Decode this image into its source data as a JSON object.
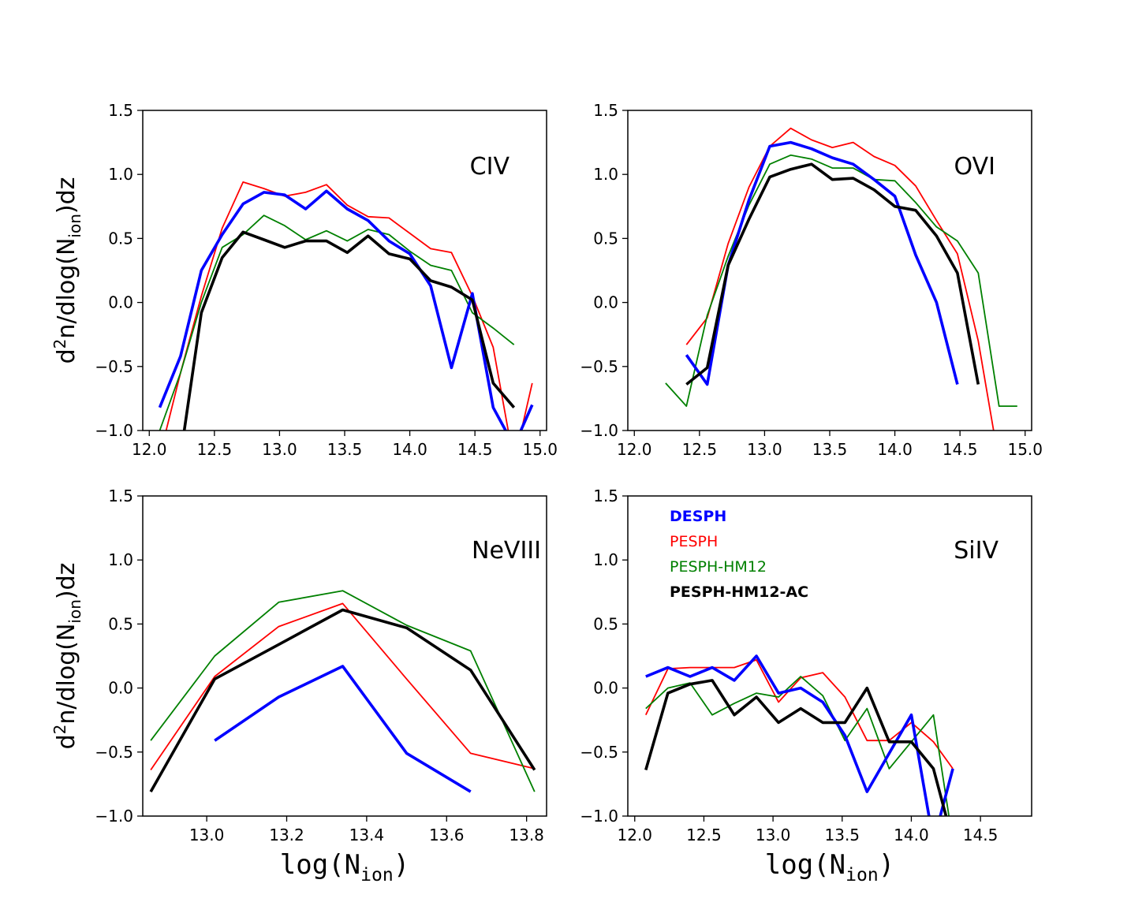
{
  "colors": {
    "DESPH": "#0000ff",
    "PESPH": "#ff0000",
    "PESPH-HM12": "#008000",
    "PESPH-HM12-AC": "#000000"
  },
  "legend": {
    "location": "upper-left of SiIV panel",
    "entries": [
      {
        "label": "DESPH",
        "series": "DESPH",
        "bold": true
      },
      {
        "label": "PESPH",
        "series": "PESPH",
        "bold": false
      },
      {
        "label": "PESPH-HM12",
        "series": "PESPH-HM12",
        "bold": false
      },
      {
        "label": "PESPH-HM12-AC",
        "series": "PESPH-HM12-AC",
        "bold": true
      }
    ]
  },
  "chart_data": [
    {
      "id": "civ",
      "type": "line",
      "title": "CIV",
      "ylabel": "d²n/dlog(N_ion)dz",
      "xlabel": "",
      "xlim": [
        11.95,
        15.05
      ],
      "ylim": [
        -1.0,
        1.5
      ],
      "xticks": [
        12.0,
        12.5,
        13.0,
        13.5,
        14.0,
        14.5,
        15.0
      ],
      "xtick_labels": [
        "12.0",
        "12.5",
        "13.0",
        "13.5",
        "14.0",
        "14.5",
        "15.0"
      ],
      "yticks": [
        -1.0,
        -0.5,
        0.0,
        0.5,
        1.0,
        1.5
      ],
      "ytick_labels": [
        "−1.0",
        "−0.5",
        "0.0",
        "0.5",
        "1.0",
        "1.5"
      ],
      "series": [
        {
          "name": "PESPH",
          "width": 1.8,
          "x": [
            12.08,
            12.24,
            12.4,
            12.56,
            12.72,
            12.88,
            13.04,
            13.2,
            13.36,
            13.52,
            13.68,
            13.84,
            14.0,
            14.16,
            14.32,
            14.48,
            14.64,
            14.8,
            14.94
          ],
          "y": [
            -1.2,
            -0.55,
            0.05,
            0.58,
            0.94,
            0.89,
            0.83,
            0.86,
            0.92,
            0.76,
            0.67,
            0.66,
            0.54,
            0.42,
            0.39,
            0.05,
            -0.35,
            -1.25,
            -0.63
          ]
        },
        {
          "name": "PESPH-HM12",
          "width": 1.8,
          "x": [
            12.08,
            12.24,
            12.4,
            12.56,
            12.72,
            12.88,
            13.04,
            13.2,
            13.36,
            13.52,
            13.68,
            13.84,
            14.0,
            14.16,
            14.32,
            14.48,
            14.64,
            14.8
          ],
          "y": [
            -1.0,
            -0.55,
            0.0,
            0.43,
            0.53,
            0.68,
            0.6,
            0.49,
            0.56,
            0.48,
            0.57,
            0.53,
            0.4,
            0.29,
            0.25,
            -0.08,
            -0.2,
            -0.33
          ]
        },
        {
          "name": "DESPH",
          "width": 3.6,
          "x": [
            12.08,
            12.24,
            12.4,
            12.56,
            12.72,
            12.88,
            13.04,
            13.2,
            13.36,
            13.52,
            13.68,
            13.84,
            14.0,
            14.16,
            14.32,
            14.48,
            14.64,
            14.8,
            14.94
          ],
          "y": [
            -0.82,
            -0.42,
            0.25,
            0.53,
            0.77,
            0.86,
            0.84,
            0.73,
            0.87,
            0.73,
            0.64,
            0.48,
            0.38,
            0.13,
            -0.51,
            0.07,
            -0.82,
            -1.12,
            -0.8
          ]
        },
        {
          "name": "PESPH-HM12-AC",
          "width": 3.6,
          "x": [
            12.24,
            12.4,
            12.56,
            12.72,
            12.88,
            13.04,
            13.2,
            13.36,
            13.52,
            13.68,
            13.84,
            14.0,
            14.16,
            14.32,
            14.48,
            14.64,
            14.8
          ],
          "y": [
            -1.2,
            -0.08,
            0.35,
            0.55,
            0.49,
            0.43,
            0.48,
            0.48,
            0.39,
            0.52,
            0.38,
            0.34,
            0.17,
            0.12,
            0.02,
            -0.63,
            -0.82
          ]
        }
      ]
    },
    {
      "id": "ovi",
      "type": "line",
      "title": "OVI",
      "ylabel": "",
      "xlabel": "",
      "xlim": [
        11.95,
        15.05
      ],
      "ylim": [
        -1.0,
        1.5
      ],
      "xticks": [
        12.0,
        12.5,
        13.0,
        13.5,
        14.0,
        14.5,
        15.0
      ],
      "xtick_labels": [
        "12.0",
        "12.5",
        "13.0",
        "13.5",
        "14.0",
        "14.5",
        "15.0"
      ],
      "yticks": [
        -1.0,
        -0.5,
        0.0,
        0.5,
        1.0,
        1.5
      ],
      "ytick_labels": [
        "−1.0",
        "−0.5",
        "0.0",
        "0.5",
        "1.0",
        "1.5"
      ],
      "series": [
        {
          "name": "PESPH",
          "width": 1.8,
          "x": [
            12.4,
            12.56,
            12.72,
            12.88,
            13.04,
            13.2,
            13.36,
            13.52,
            13.68,
            13.84,
            14.0,
            14.16,
            14.32,
            14.48,
            14.64,
            14.8
          ],
          "y": [
            -0.33,
            -0.12,
            0.46,
            0.9,
            1.22,
            1.36,
            1.27,
            1.21,
            1.25,
            1.14,
            1.07,
            0.91,
            0.64,
            0.38,
            -0.3,
            -1.25
          ]
        },
        {
          "name": "PESPH-HM12",
          "width": 1.8,
          "x": [
            12.24,
            12.4,
            12.56,
            12.72,
            12.88,
            13.04,
            13.2,
            13.36,
            13.52,
            13.68,
            13.84,
            14.0,
            14.16,
            14.32,
            14.48,
            14.64,
            14.8,
            14.94
          ],
          "y": [
            -0.63,
            -0.81,
            -0.1,
            0.36,
            0.76,
            1.08,
            1.15,
            1.12,
            1.05,
            1.05,
            0.96,
            0.95,
            0.78,
            0.59,
            0.48,
            0.23,
            -0.81,
            -0.81
          ]
        },
        {
          "name": "DESPH",
          "width": 3.6,
          "x": [
            12.4,
            12.56,
            12.72,
            12.88,
            13.04,
            13.2,
            13.36,
            13.52,
            13.68,
            13.84,
            14.0,
            14.16,
            14.32,
            14.48
          ],
          "y": [
            -0.41,
            -0.64,
            0.29,
            0.8,
            1.22,
            1.25,
            1.2,
            1.13,
            1.08,
            0.96,
            0.83,
            0.37,
            0.0,
            -0.64
          ]
        },
        {
          "name": "PESPH-HM12-AC",
          "width": 3.6,
          "x": [
            12.4,
            12.56,
            12.72,
            12.88,
            13.04,
            13.2,
            13.36,
            13.52,
            13.68,
            13.84,
            14.0,
            14.16,
            14.32,
            14.48,
            14.64
          ],
          "y": [
            -0.64,
            -0.51,
            0.29,
            0.65,
            0.98,
            1.04,
            1.08,
            0.96,
            0.97,
            0.88,
            0.75,
            0.72,
            0.52,
            0.23,
            -0.64
          ]
        }
      ]
    },
    {
      "id": "neviii",
      "type": "line",
      "title": "NeVIII",
      "ylabel": "d²n/dlog(N_ion)dz",
      "xlabel": "log(N_ion)",
      "xlim": [
        12.84,
        13.85
      ],
      "ylim": [
        -1.0,
        1.5
      ],
      "xticks": [
        13.0,
        13.2,
        13.4,
        13.6,
        13.8
      ],
      "xtick_labels": [
        "13.0",
        "13.2",
        "13.4",
        "13.6",
        "13.8"
      ],
      "yticks": [
        -1.0,
        -0.5,
        0.0,
        0.5,
        1.0,
        1.5
      ],
      "ytick_labels": [
        "−1.0",
        "−0.5",
        "0.0",
        "0.5",
        "1.0",
        "1.5"
      ],
      "series": [
        {
          "name": "PESPH",
          "width": 1.8,
          "x": [
            12.86,
            13.02,
            13.18,
            13.34,
            13.5,
            13.66,
            13.82
          ],
          "y": [
            -0.64,
            0.09,
            0.48,
            0.66,
            0.07,
            -0.51,
            -0.63
          ]
        },
        {
          "name": "PESPH-HM12",
          "width": 1.8,
          "x": [
            12.86,
            13.02,
            13.18,
            13.34,
            13.5,
            13.66,
            13.82
          ],
          "y": [
            -0.41,
            0.25,
            0.67,
            0.76,
            0.49,
            0.29,
            -0.81
          ]
        },
        {
          "name": "DESPH",
          "width": 3.6,
          "x": [
            13.02,
            13.18,
            13.34,
            13.5,
            13.66
          ],
          "y": [
            -0.41,
            -0.07,
            0.17,
            -0.51,
            -0.81
          ]
        },
        {
          "name": "PESPH-HM12-AC",
          "width": 3.6,
          "x": [
            12.86,
            13.02,
            13.18,
            13.34,
            13.5,
            13.66,
            13.82
          ],
          "y": [
            -0.81,
            0.07,
            0.34,
            0.61,
            0.47,
            0.14,
            -0.64
          ]
        }
      ]
    },
    {
      "id": "siiv",
      "type": "line",
      "title": "SiIV",
      "ylabel": "",
      "xlabel": "log(N_ion)",
      "xlim": [
        11.95,
        14.87
      ],
      "ylim": [
        -1.0,
        1.5
      ],
      "xticks": [
        12.0,
        12.5,
        13.0,
        13.5,
        14.0,
        14.5
      ],
      "xtick_labels": [
        "12.0",
        "12.5",
        "13.0",
        "13.5",
        "14.0",
        "14.5"
      ],
      "yticks": [
        -1.0,
        -0.5,
        0.0,
        0.5,
        1.0,
        1.5
      ],
      "ytick_labels": [
        "−1.0",
        "−0.5",
        "0.0",
        "0.5",
        "1.0",
        "1.5"
      ],
      "series": [
        {
          "name": "PESPH",
          "width": 1.8,
          "x": [
            12.08,
            12.24,
            12.4,
            12.56,
            12.72,
            12.88,
            13.04,
            13.2,
            13.36,
            13.52,
            13.68,
            13.84,
            14.0,
            14.16,
            14.3
          ],
          "y": [
            -0.21,
            0.15,
            0.16,
            0.16,
            0.16,
            0.22,
            -0.11,
            0.08,
            0.12,
            -0.07,
            -0.41,
            -0.41,
            -0.27,
            -0.42,
            -0.63
          ]
        },
        {
          "name": "PESPH-HM12",
          "width": 1.8,
          "x": [
            12.08,
            12.24,
            12.4,
            12.56,
            12.72,
            12.88,
            13.04,
            13.2,
            13.36,
            13.52,
            13.68,
            13.84,
            14.0,
            14.16,
            14.3
          ],
          "y": [
            -0.16,
            0.0,
            0.04,
            -0.21,
            -0.12,
            -0.04,
            -0.07,
            0.09,
            -0.06,
            -0.41,
            -0.16,
            -0.63,
            -0.42,
            -0.21,
            -1.2
          ]
        },
        {
          "name": "DESPH",
          "width": 3.6,
          "x": [
            12.08,
            12.24,
            12.4,
            12.56,
            12.72,
            12.88,
            13.04,
            13.2,
            13.36,
            13.52,
            13.68,
            13.84,
            14.0,
            14.16,
            14.3
          ],
          "y": [
            0.09,
            0.16,
            0.09,
            0.16,
            0.06,
            0.25,
            -0.04,
            0.0,
            -0.11,
            -0.37,
            -0.81,
            -0.51,
            -0.21,
            -1.2,
            -0.63
          ]
        },
        {
          "name": "PESPH-HM12-AC",
          "width": 3.6,
          "x": [
            12.08,
            12.24,
            12.4,
            12.56,
            12.72,
            12.88,
            13.04,
            13.2,
            13.36,
            13.52,
            13.68,
            13.84,
            14.0,
            14.16,
            14.3
          ],
          "y": [
            -0.64,
            -0.04,
            0.03,
            0.06,
            -0.21,
            -0.07,
            -0.27,
            -0.16,
            -0.27,
            -0.27,
            0.0,
            -0.42,
            -0.42,
            -0.63,
            -1.2
          ]
        }
      ]
    }
  ]
}
